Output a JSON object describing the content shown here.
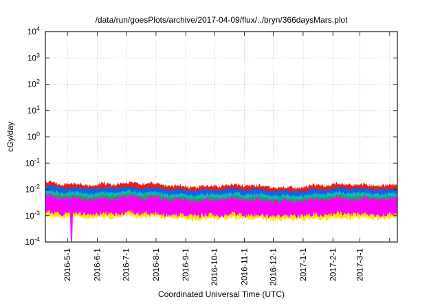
{
  "chart_data": {
    "type": "area",
    "title": "/data/run/goesPlots/archive/2017-04-09/flux/../bryn/366daysMars.plot",
    "xlabel": "Coordinated Universal Time (UTC)",
    "ylabel": "cGy/day",
    "y_scale": "log10",
    "ylim": [
      0.0001,
      10000
    ],
    "y_tick_exponents": [
      4,
      3,
      2,
      1,
      0,
      -1,
      -2,
      -3,
      -4
    ],
    "x_span_days": 366,
    "x_ticks": [
      {
        "label": "2016-5-1",
        "day": 23
      },
      {
        "label": "2016-6-1",
        "day": 54
      },
      {
        "label": "2016-7-1",
        "day": 84
      },
      {
        "label": "2016-8-1",
        "day": 115
      },
      {
        "label": "2016-9-1",
        "day": 146
      },
      {
        "label": "2016-10-1",
        "day": 176
      },
      {
        "label": "2016-11-1",
        "day": 207
      },
      {
        "label": "2016-12-1",
        "day": 237
      },
      {
        "label": "2017-1-1",
        "day": 268
      },
      {
        "label": "2017-2-1",
        "day": 299
      },
      {
        "label": "2017-3-1",
        "day": 327
      },
      {
        "label": "",
        "day": 358
      }
    ],
    "grid": {
      "show": true,
      "color": "#c9c9c9",
      "style": "dotted"
    },
    "axis_color": "#2a2a2a",
    "background": "#ffffff",
    "series": [
      {
        "name": "dose-band-red",
        "color": "#ee1c14",
        "top": 0.0148,
        "bottom": 0.004,
        "jitter": 0.14
      },
      {
        "name": "dose-band-blue",
        "color": "#1261e8",
        "top": 0.0105,
        "bottom": 0.0034,
        "jitter": 0.13
      },
      {
        "name": "dose-band-cyan",
        "color": "#00bfbf",
        "top": 0.007,
        "bottom": 0.003,
        "jitter": 0.13
      },
      {
        "name": "dose-band-green",
        "color": "#1fa35c",
        "top": 0.0055,
        "bottom": 0.0026,
        "jitter": 0.13
      },
      {
        "name": "dose-band-yellow",
        "color": "#ffe800",
        "top": 0.002,
        "bottom": 0.001,
        "jitter": 0.22
      },
      {
        "name": "dose-band-magenta",
        "color": "#ff00ff",
        "top": 0.0043,
        "bottom": 0.0014,
        "jitter": 0.24,
        "spike": {
          "day": 27,
          "min_value": 0.000105
        }
      }
    ]
  }
}
